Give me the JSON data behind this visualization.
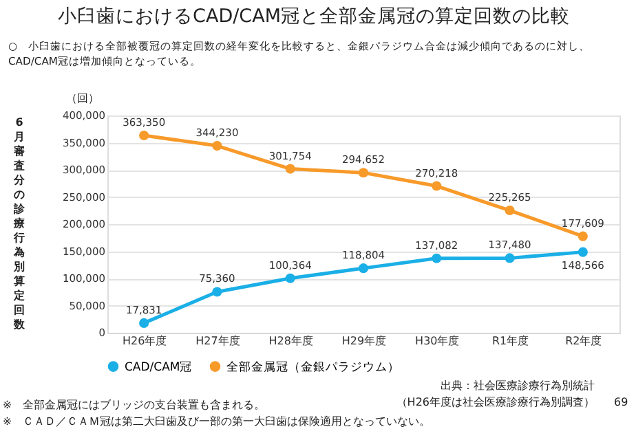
{
  "chart_data": {
    "type": "line",
    "title": "小臼歯におけるCAD/CAM冠と全部金属冠の算定回数の比較",
    "subtitle": [
      "○　小臼歯における全部被覆冠の算定回数の経年変化を比較すると、金銀パラジウム合金は減少傾向であるのに対し、",
      "CAD/CAM冠は増加傾向となっている。"
    ],
    "ylabel": "6月審査分の診療行為別算定回数",
    "categories": [
      "H26年度",
      "H27年度",
      "H28年度",
      "H29年度",
      "H30年度",
      "R1年度",
      "R2年度"
    ],
    "series": [
      {
        "name": "CAD/CAM冠",
        "color": "#1aafe6",
        "values": [
          17831,
          75360,
          100364,
          118804,
          137082,
          137480,
          148566
        ],
        "value_labels": [
          "17,831",
          "75,360",
          "100,364",
          "118,804",
          "137,082",
          "137,480",
          "148,566"
        ]
      },
      {
        "name": "全部金属冠（金銀パラジウム）",
        "color": "#f79a2a",
        "values": [
          363350,
          344230,
          301754,
          294652,
          270218,
          225265,
          177609
        ],
        "value_labels": [
          "363,350",
          "344,230",
          "301,754",
          "294,652",
          "270,218",
          "225,265",
          "177,609"
        ]
      }
    ],
    "ylim": [
      0,
      400000
    ],
    "yticks": [
      {
        "value": 0,
        "label": "0"
      },
      {
        "value": 50000,
        "label": "50,000"
      },
      {
        "value": 100000,
        "label": "100,000"
      },
      {
        "value": 150000,
        "label": "150,000"
      },
      {
        "value": 200000,
        "label": "200,000"
      },
      {
        "value": 250000,
        "label": "250,000"
      },
      {
        "value": 300000,
        "label": "300,000"
      },
      {
        "value": 350000,
        "label": "350,000"
      },
      {
        "value": 400000,
        "label": "400,000"
      }
    ],
    "grid": "y",
    "legend": "bottom",
    "marker": "circle",
    "line_style": "solid",
    "annotations": [
      "（回）",
      "※　全部金属冠にはブリッジの支台装置も含まれる。",
      "※　ＣＡＤ／ＣＡＭ冠は第二大臼歯及び一部の第一大臼歯は保険適用となっていない。",
      "出典：社会医療診療行為別統計",
      "（H26年度は社会医療診療行為別調査）",
      "69"
    ]
  }
}
